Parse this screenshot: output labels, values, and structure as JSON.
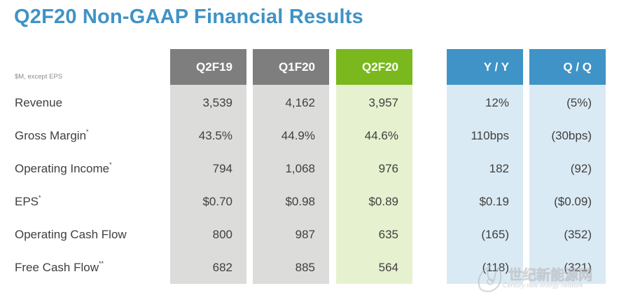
{
  "title": "Q2F20 Non-GAAP Financial Results",
  "subnote": "$M, except EPS",
  "columns": [
    "Q2F19",
    "Q1F20",
    "Q2F20",
    "Y / Y",
    "Q / Q"
  ],
  "colors": {
    "title": "#3f93c6",
    "gray_header": "#7e7e7e",
    "green_header": "#7ab81e",
    "blue_header": "#3f93c6"
  },
  "rows": [
    {
      "label": "Revenue",
      "mark": "",
      "values": [
        "3,539",
        "4,162",
        "3,957",
        "12%",
        "(5%)"
      ]
    },
    {
      "label": "Gross Margin",
      "mark": "*",
      "values": [
        "43.5%",
        "44.9%",
        "44.6%",
        "110bps",
        "(30bps)"
      ]
    },
    {
      "label": "Operating Income",
      "mark": "*",
      "values": [
        "794",
        "1,068",
        "976",
        "182",
        "(92)"
      ]
    },
    {
      "label": "EPS",
      "mark": "*",
      "values": [
        "$0.70",
        "$0.98",
        "$0.89",
        "$0.19",
        "($0.09)"
      ]
    },
    {
      "label": "Operating Cash Flow",
      "mark": "",
      "values": [
        "800",
        "987",
        "635",
        "(165)",
        "(352)"
      ]
    },
    {
      "label": "Free Cash Flow",
      "mark": "**",
      "values": [
        "682",
        "885",
        "564",
        "(118)",
        "(321)"
      ]
    }
  ],
  "watermark": {
    "text": "世纪新能源网",
    "sub": "Century new energy network"
  }
}
